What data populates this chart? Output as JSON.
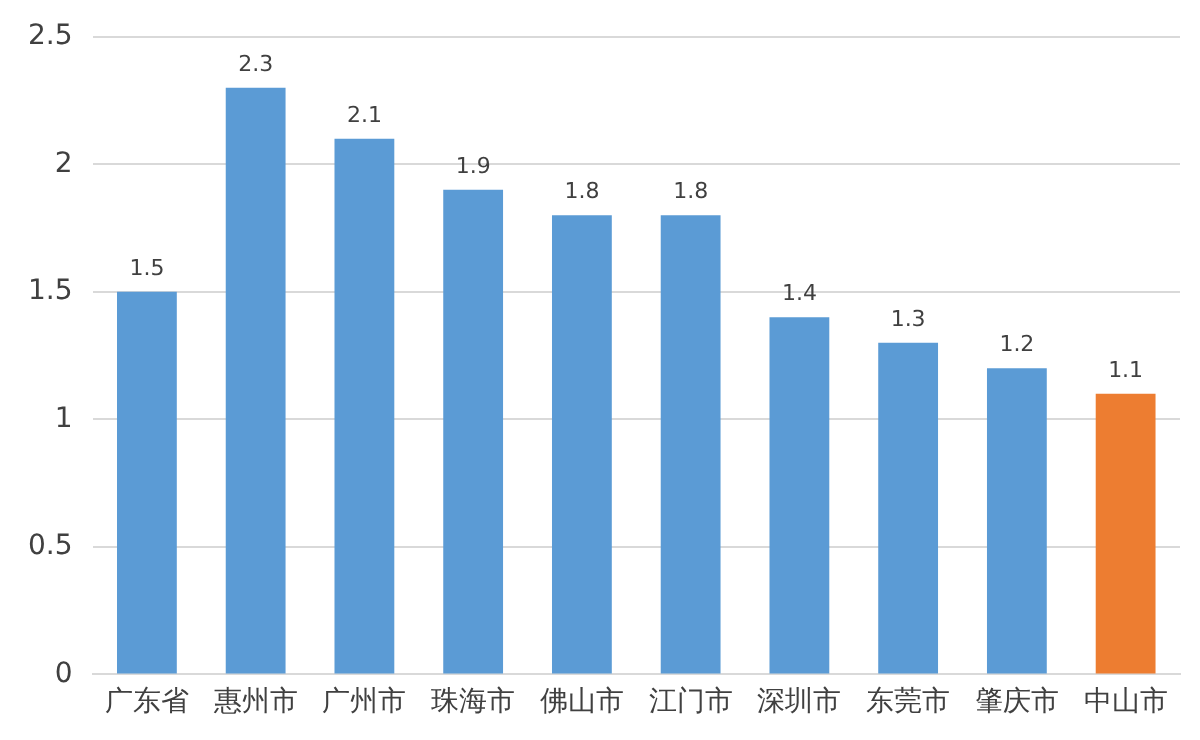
{
  "chart_data": {
    "type": "bar",
    "categories": [
      "广东省",
      "惠州市",
      "广州市",
      "珠海市",
      "佛山市",
      "江门市",
      "深圳市",
      "东莞市",
      "肇庆市",
      "中山市"
    ],
    "values": [
      1.5,
      2.3,
      2.1,
      1.9,
      1.8,
      1.8,
      1.4,
      1.3,
      1.2,
      1.1
    ],
    "colors": [
      "#5b9bd5",
      "#5b9bd5",
      "#5b9bd5",
      "#5b9bd5",
      "#5b9bd5",
      "#5b9bd5",
      "#5b9bd5",
      "#5b9bd5",
      "#5b9bd5",
      "#ed7d31"
    ],
    "ylim": [
      0,
      2.5
    ],
    "yticks": [
      0,
      0.5,
      1,
      1.5,
      2,
      2.5
    ],
    "grid": "y",
    "data_labels": true
  }
}
